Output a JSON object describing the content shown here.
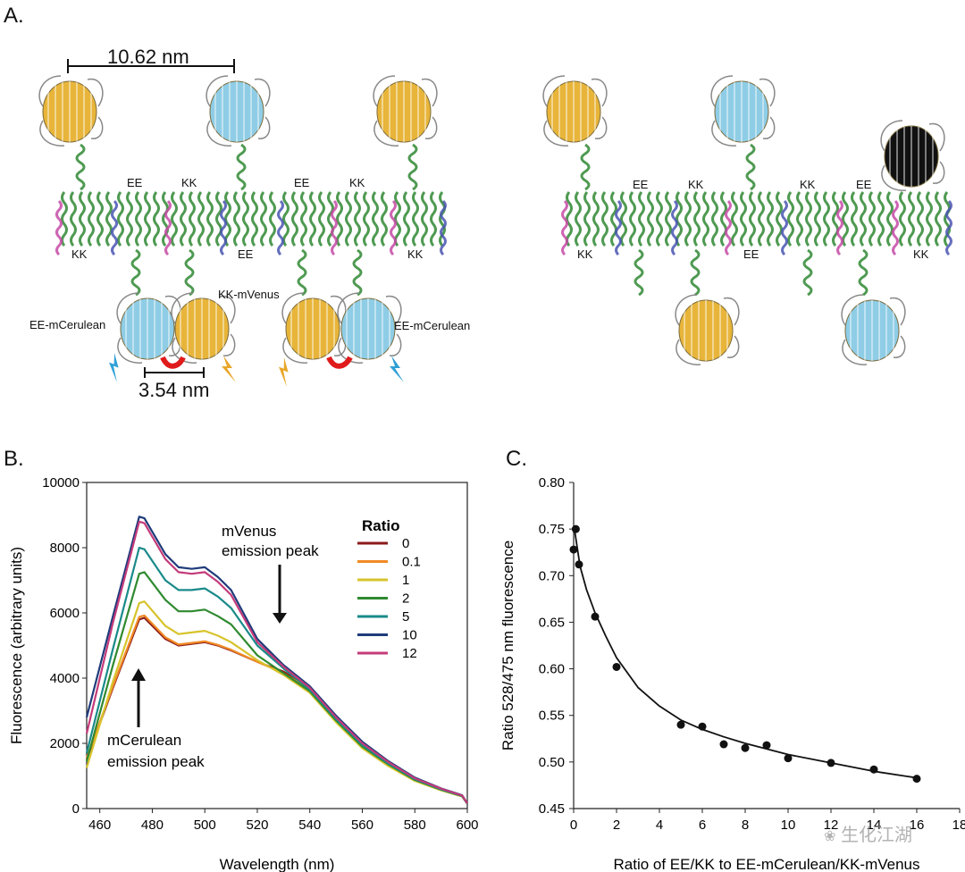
{
  "panelA": {
    "letter": "A.",
    "scale_top": "10.62 nm",
    "scale_bottom": "3.54 nm",
    "left_top_labels": [
      "EE",
      "KK",
      "EE",
      "KK"
    ],
    "left_bottom_labels": [
      "KK",
      "EE",
      "KK"
    ],
    "left_side_labels": {
      "kk_mvenus": "KK-mVenus",
      "ee_mcerulean_left": "EE-mCerulean",
      "ee_mcerulean_right": "EE-mCerulean"
    },
    "right_top_labels": [
      "EE",
      "KK",
      "KK",
      "EE"
    ],
    "right_bottom_labels": [
      "KK",
      "EE",
      "KK"
    ],
    "colors": {
      "gold": "#e8b53a",
      "cyan": "#8fcde6",
      "helix_green": "#4f9a52",
      "helix_magenta": "#c64aa6",
      "helix_blue": "#4a55b2",
      "linker_red": "#e01b1b"
    }
  },
  "panelB": {
    "letter": "B.",
    "annotations": {
      "mvenus_line1": "mVenus",
      "mvenus_line2": "emission peak",
      "mcerulean_line1": "mCerulean",
      "mcerulean_line2": "emission peak"
    }
  },
  "panelC": {
    "letter": "C."
  },
  "watermark": {
    "text": "生化江湖"
  },
  "chart_data": [
    {
      "type": "line",
      "title": "",
      "xlabel": "Wavelength (nm)",
      "ylabel": "Fluorescence (arbitrary units)",
      "xlim": [
        455,
        600
      ],
      "ylim": [
        0,
        10000
      ],
      "xticks": [
        460,
        480,
        500,
        520,
        540,
        560,
        580,
        600
      ],
      "yticks": [
        0,
        2000,
        4000,
        6000,
        8000,
        10000
      ],
      "legend_title": "Ratio",
      "legend_position": "top-right",
      "x": [
        455,
        465,
        475,
        477,
        485,
        490,
        495,
        500,
        505,
        510,
        520,
        530,
        540,
        550,
        560,
        570,
        580,
        590,
        598,
        600
      ],
      "series": [
        {
          "name": "0",
          "color": "#8b1a1a",
          "values": [
            1500,
            3700,
            5800,
            5850,
            5200,
            5000,
            5050,
            5100,
            5000,
            4850,
            4500,
            4200,
            3700,
            2800,
            2000,
            1400,
            900,
            600,
            400,
            150
          ]
        },
        {
          "name": "0.1",
          "color": "#f08a24",
          "values": [
            1550,
            3750,
            5880,
            5920,
            5250,
            5030,
            5080,
            5130,
            5020,
            4870,
            4500,
            4150,
            3650,
            2750,
            1950,
            1350,
            880,
            580,
            380,
            150
          ]
        },
        {
          "name": "1",
          "color": "#d7c32b",
          "values": [
            1250,
            3900,
            6300,
            6350,
            5600,
            5350,
            5400,
            5450,
            5300,
            5100,
            4550,
            4100,
            3550,
            2650,
            1850,
            1300,
            850,
            560,
            370,
            150
          ]
        },
        {
          "name": "2",
          "color": "#2f8a2f",
          "values": [
            1450,
            4400,
            7200,
            7250,
            6400,
            6050,
            6050,
            6100,
            5900,
            5650,
            4700,
            4150,
            3600,
            2700,
            1900,
            1350,
            880,
            580,
            380,
            150
          ]
        },
        {
          "name": "5",
          "color": "#1a8a8a",
          "values": [
            1700,
            4900,
            8000,
            7950,
            7000,
            6700,
            6700,
            6750,
            6500,
            6150,
            5000,
            4300,
            3650,
            2750,
            1950,
            1380,
            900,
            590,
            390,
            150
          ]
        },
        {
          "name": "10",
          "color": "#1f3b7a",
          "values": [
            2800,
            5900,
            8950,
            8900,
            7800,
            7400,
            7350,
            7400,
            7100,
            6700,
            5200,
            4400,
            3750,
            2850,
            2050,
            1450,
            950,
            620,
            410,
            160
          ]
        },
        {
          "name": "12",
          "color": "#c43b7a",
          "values": [
            2300,
            5700,
            8800,
            8750,
            7650,
            7250,
            7200,
            7250,
            6950,
            6550,
            5100,
            4350,
            3700,
            2800,
            2000,
            1420,
            930,
            610,
            400,
            160
          ]
        }
      ]
    },
    {
      "type": "scatter",
      "title": "",
      "xlabel": "Ratio of EE/KK to EE-mCerulean/KK-mVenus",
      "ylabel": "Ratio 528/475 nm fluorescence",
      "xlim": [
        0,
        18
      ],
      "ylim": [
        0.45,
        0.8
      ],
      "xticks": [
        0,
        2,
        4,
        6,
        8,
        10,
        12,
        14,
        16,
        18
      ],
      "yticks": [
        0.45,
        0.5,
        0.55,
        0.6,
        0.65,
        0.7,
        0.75,
        0.8
      ],
      "points": {
        "x": [
          0,
          0.1,
          0.25,
          1,
          2,
          5,
          6,
          7,
          8,
          9,
          10,
          12,
          14,
          16
        ],
        "y": [
          0.728,
          0.75,
          0.712,
          0.656,
          0.602,
          0.54,
          0.538,
          0.519,
          0.515,
          0.518,
          0.504,
          0.499,
          0.492,
          0.482
        ]
      },
      "fit_curve": {
        "x": [
          0.05,
          0.3,
          0.6,
          1,
          1.5,
          2,
          3,
          4,
          5,
          6,
          7,
          8,
          10,
          12,
          14,
          16
        ],
        "y": [
          0.748,
          0.71,
          0.685,
          0.66,
          0.635,
          0.612,
          0.58,
          0.56,
          0.545,
          0.535,
          0.527,
          0.52,
          0.508,
          0.499,
          0.49,
          0.483
        ]
      }
    }
  ]
}
